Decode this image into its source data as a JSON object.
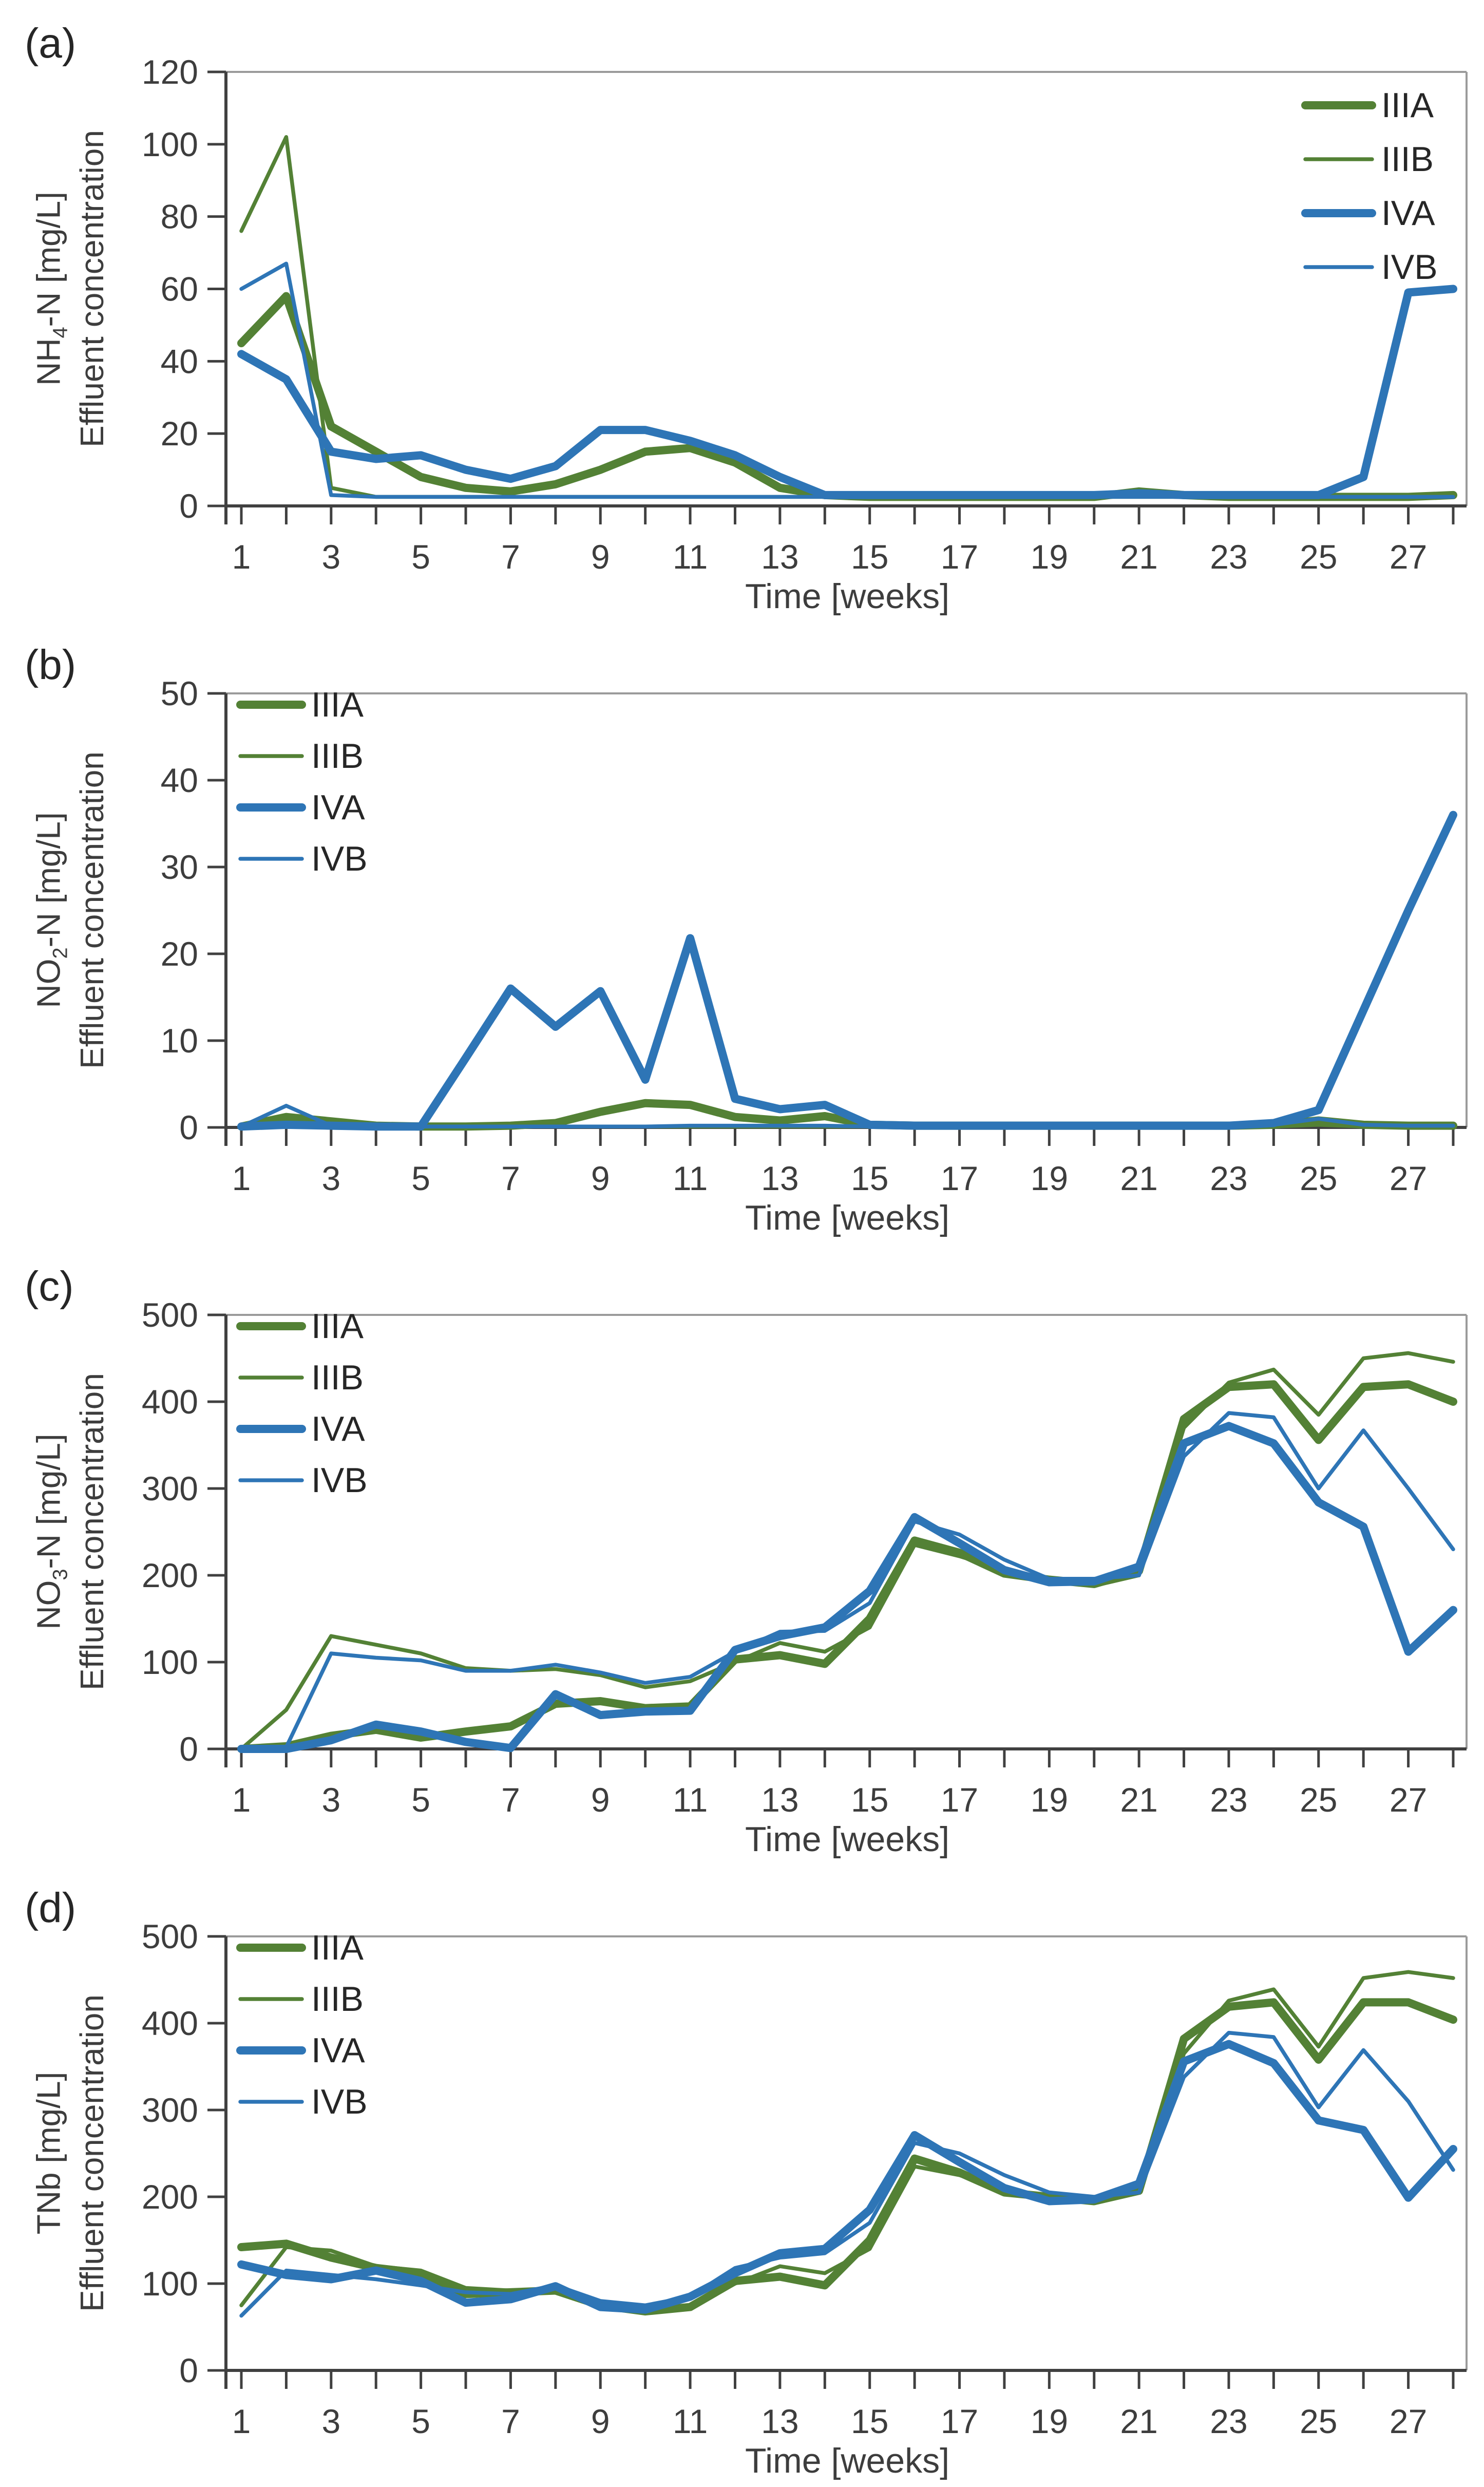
{
  "figure": {
    "x_axis_title": "Time [weeks]",
    "legend_entries": [
      "IIIA",
      "IIIB",
      "IVA",
      "IVB"
    ]
  },
  "colors": {
    "series_green": "#538135",
    "series_blue": "#2e75b6",
    "axis": "#404040",
    "frame": "#9b9b9b",
    "text": "#3d3d3d"
  },
  "chart_data": [
    {
      "type": "line",
      "panel_label": "(a)",
      "y_label": {
        "pre": "NH",
        "sub": "4",
        "post": "-N [mg/L]",
        "line2": "Effluent concentration"
      },
      "x_label": "Time [weeks]",
      "x_weeks": {
        "min": 1,
        "max": 28,
        "tick_step": 1,
        "labeled_ticks": [
          1,
          3,
          5,
          7,
          9,
          11,
          13,
          15,
          17,
          19,
          21,
          23,
          25,
          27
        ]
      },
      "ylim": [
        0,
        120
      ],
      "y_ticks": [
        0,
        20,
        40,
        60,
        80,
        100,
        120
      ],
      "grid": false,
      "legend_position": "top-right",
      "series": [
        {
          "name": "IIIA",
          "color": "#538135",
          "thick": true,
          "values": [
            45,
            58,
            22,
            15,
            8,
            5,
            4,
            6,
            10,
            15,
            16,
            12,
            5,
            3,
            2.5,
            2.5,
            2.5,
            2.5,
            2.5,
            2.5,
            4,
            3,
            2.5,
            2.5,
            2.5,
            2.5,
            2.5,
            3
          ]
        },
        {
          "name": "IIIB",
          "color": "#538135",
          "thick": false,
          "values": [
            76,
            102,
            5,
            2.5,
            2.5,
            2.5,
            2.5,
            2.5,
            2.5,
            2.5,
            2.5,
            2.5,
            2.5,
            2.5,
            2.5,
            2.5,
            2.5,
            2.5,
            2.5,
            2.5,
            2.5,
            2.5,
            2.5,
            2.5,
            2.5,
            2.5,
            3,
            3
          ]
        },
        {
          "name": "IVA",
          "color": "#2e75b6",
          "thick": true,
          "values": [
            42,
            35,
            15,
            13,
            14,
            10,
            7.5,
            11,
            21,
            21,
            18,
            14,
            8,
            3,
            3,
            3,
            3,
            3,
            3,
            3,
            3.5,
            3,
            3,
            3,
            3,
            8,
            59,
            60
          ]
        },
        {
          "name": "IVB",
          "color": "#2e75b6",
          "thick": false,
          "values": [
            60,
            67,
            3,
            2.5,
            2.5,
            2.5,
            2.5,
            2.5,
            2.5,
            2.5,
            2.5,
            2.5,
            2.5,
            2.5,
            2.5,
            2.5,
            2.5,
            2.5,
            2.5,
            2.5,
            2.5,
            2.5,
            2.5,
            2.5,
            2.5,
            2.5,
            2.5,
            2.5
          ]
        }
      ]
    },
    {
      "type": "line",
      "panel_label": "(b)",
      "y_label": {
        "pre": "NO",
        "sub": "2",
        "post": "-N [mg/L]",
        "line2": "Effluent concentration"
      },
      "x_label": "Time [weeks]",
      "x_weeks": {
        "min": 1,
        "max": 28,
        "tick_step": 1,
        "labeled_ticks": [
          1,
          3,
          5,
          7,
          9,
          11,
          13,
          15,
          17,
          19,
          21,
          23,
          25,
          27
        ]
      },
      "ylim": [
        0,
        50
      ],
      "y_ticks": [
        0,
        10,
        20,
        30,
        40,
        50
      ],
      "grid": false,
      "legend_position": "top-left",
      "series": [
        {
          "name": "IIIA",
          "color": "#538135",
          "thick": true,
          "values": [
            0.1,
            1.2,
            0.7,
            0.2,
            0.1,
            0.1,
            0.2,
            0.5,
            1.8,
            2.8,
            2.6,
            1.2,
            0.8,
            1.3,
            0.3,
            0.2,
            0.2,
            0.2,
            0.2,
            0.2,
            0.2,
            0.2,
            0.2,
            0.3,
            0.8,
            0.3,
            0.2,
            0.2
          ]
        },
        {
          "name": "IIIB",
          "color": "#538135",
          "thick": false,
          "values": [
            0.1,
            0.8,
            0.3,
            0.1,
            0.1,
            0.1,
            0.1,
            0.1,
            0.1,
            0.1,
            0.1,
            0.1,
            0.1,
            0.1,
            0.1,
            0.1,
            0.1,
            0.1,
            0.1,
            0.1,
            0.1,
            0.1,
            0.1,
            0.1,
            0.3,
            0.1,
            0.1,
            0.1
          ]
        },
        {
          "name": "IVA",
          "color": "#2e75b6",
          "thick": true,
          "values": [
            0.1,
            0.3,
            0.2,
            0.1,
            0.1,
            8,
            16,
            11.6,
            15.7,
            5.5,
            21.8,
            3.3,
            2.1,
            2.6,
            0.3,
            0.2,
            0.2,
            0.2,
            0.2,
            0.2,
            0.2,
            0.2,
            0.2,
            0.5,
            2,
            13.5,
            25,
            36
          ]
        },
        {
          "name": "IVB",
          "color": "#2e75b6",
          "thick": false,
          "values": [
            0.1,
            2.5,
            0.2,
            0.1,
            0.1,
            0.1,
            0.1,
            0.1,
            0.1,
            0.1,
            0.2,
            0.2,
            0.2,
            0.2,
            0.1,
            0.1,
            0.1,
            0.1,
            0.1,
            0.1,
            0.1,
            0.1,
            0.1,
            0.3,
            1,
            0.3,
            0.2,
            0.2
          ]
        }
      ]
    },
    {
      "type": "line",
      "panel_label": "(c)",
      "y_label": {
        "pre": "NO",
        "sub": "3",
        "post": "-N [mg/L]",
        "line2": "Effluent concentration"
      },
      "x_label": "Time [weeks]",
      "x_weeks": {
        "min": 1,
        "max": 28,
        "tick_step": 1,
        "labeled_ticks": [
          1,
          3,
          5,
          7,
          9,
          11,
          13,
          15,
          17,
          19,
          21,
          23,
          25,
          27
        ]
      },
      "ylim": [
        0,
        500
      ],
      "y_ticks": [
        0,
        100,
        200,
        300,
        400,
        500
      ],
      "grid": false,
      "legend_position": "top-left",
      "series": [
        {
          "name": "IIIA",
          "color": "#538135",
          "thick": true,
          "values": [
            0,
            3,
            15,
            22,
            13,
            20,
            26,
            52,
            55,
            47,
            49,
            103,
            108,
            98,
            150,
            240,
            226,
            202,
            195,
            190,
            205,
            380,
            417,
            420,
            356,
            417,
            420,
            400
          ]
        },
        {
          "name": "IIIB",
          "color": "#538135",
          "thick": false,
          "values": [
            0,
            45,
            130,
            120,
            110,
            93,
            90,
            92,
            85,
            71,
            78,
            100,
            122,
            112,
            140,
            235,
            222,
            206,
            193,
            188,
            200,
            370,
            422,
            437,
            385,
            450,
            456,
            446
          ]
        },
        {
          "name": "IVA",
          "color": "#2e75b6",
          "thick": true,
          "values": [
            0,
            0,
            10,
            28,
            20,
            8,
            1,
            63,
            39,
            43,
            44,
            114,
            130,
            140,
            182,
            267,
            237,
            206,
            192,
            193,
            210,
            352,
            372,
            352,
            284,
            256,
            112,
            160
          ]
        },
        {
          "name": "IVB",
          "color": "#2e75b6",
          "thick": false,
          "values": [
            0,
            2,
            110,
            105,
            102,
            90,
            90,
            97,
            88,
            76,
            83,
            112,
            135,
            136,
            168,
            262,
            247,
            218,
            196,
            196,
            200,
            337,
            387,
            382,
            300,
            367,
            300,
            230
          ]
        }
      ]
    },
    {
      "type": "line",
      "panel_label": "(d)",
      "y_label": {
        "pre": "TNb [mg/L]",
        "sub": "",
        "post": "",
        "line2": "Effluent concentration"
      },
      "x_label": "Time [weeks]",
      "x_weeks": {
        "min": 1,
        "max": 28,
        "tick_step": 1,
        "labeled_ticks": [
          1,
          3,
          5,
          7,
          9,
          11,
          13,
          15,
          17,
          19,
          21,
          23,
          25,
          27
        ]
      },
      "ylim": [
        0,
        500
      ],
      "y_ticks": [
        0,
        100,
        200,
        300,
        400,
        500
      ],
      "grid": false,
      "legend_position": "top-left",
      "series": [
        {
          "name": "IIIA",
          "color": "#538135",
          "thick": true,
          "values": [
            142,
            146,
            130,
            118,
            112,
            88,
            90,
            92,
            75,
            68,
            73,
            103,
            108,
            98,
            150,
            244,
            228,
            205,
            200,
            195,
            207,
            382,
            419,
            424,
            358,
            424,
            424,
            404
          ]
        },
        {
          "name": "IIIB",
          "color": "#538135",
          "thick": false,
          "values": [
            75,
            142,
            138,
            120,
            115,
            95,
            92,
            90,
            75,
            67,
            72,
            100,
            120,
            112,
            140,
            235,
            225,
            208,
            198,
            193,
            205,
            365,
            426,
            439,
            373,
            452,
            459,
            452
          ]
        },
        {
          "name": "IVA",
          "color": "#2e75b6",
          "thick": true,
          "values": [
            122,
            110,
            105,
            115,
            103,
            78,
            82,
            97,
            73,
            70,
            85,
            112,
            135,
            140,
            185,
            271,
            240,
            210,
            195,
            197,
            215,
            356,
            376,
            354,
            288,
            277,
            199,
            255
          ]
        },
        {
          "name": "IVB",
          "color": "#2e75b6",
          "thick": false,
          "values": [
            63,
            115,
            110,
            105,
            98,
            90,
            88,
            98,
            80,
            75,
            85,
            118,
            130,
            135,
            170,
            262,
            250,
            225,
            205,
            200,
            205,
            338,
            389,
            384,
            303,
            369,
            310,
            231
          ]
        }
      ]
    }
  ]
}
